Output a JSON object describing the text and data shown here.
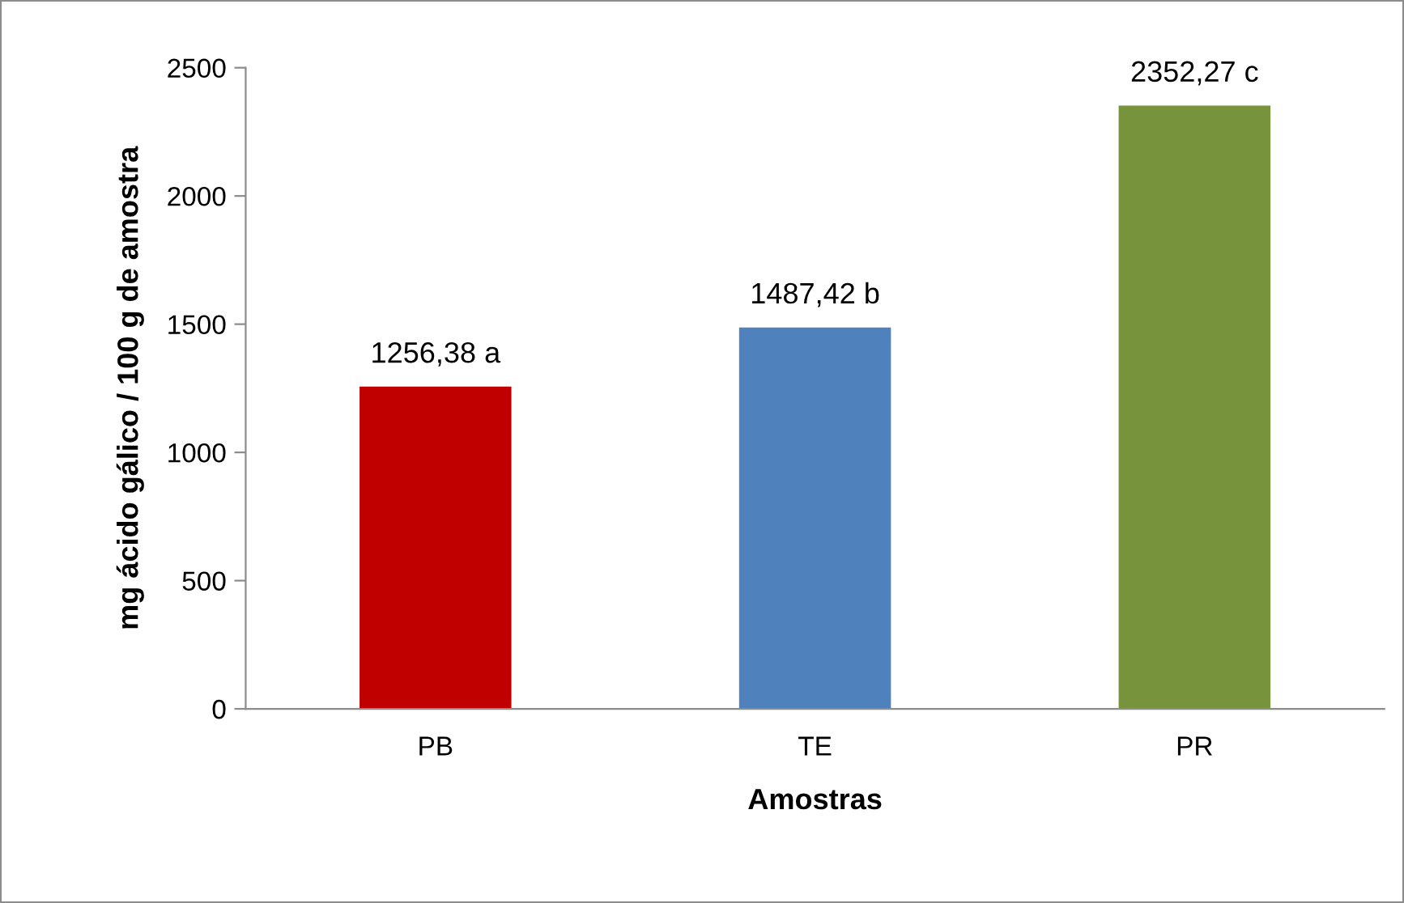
{
  "chart_data": {
    "type": "bar",
    "xlabel": "Amostras",
    "ylabel": "mg ácido gálico / 100 g de amostra",
    "categories": [
      "PB",
      "TE",
      "PR"
    ],
    "values": [
      1256.38,
      1487.42,
      2352.27
    ],
    "colors": [
      "#c00000",
      "#4f81bd",
      "#77933c"
    ],
    "value_labels": [
      "1256,38 a",
      "1487,42 b",
      "2352,27 c"
    ],
    "ylim": [
      0,
      2500
    ],
    "yticks": [
      0,
      500,
      1000,
      1500,
      2000,
      2500
    ],
    "grid": false,
    "legend": false
  }
}
